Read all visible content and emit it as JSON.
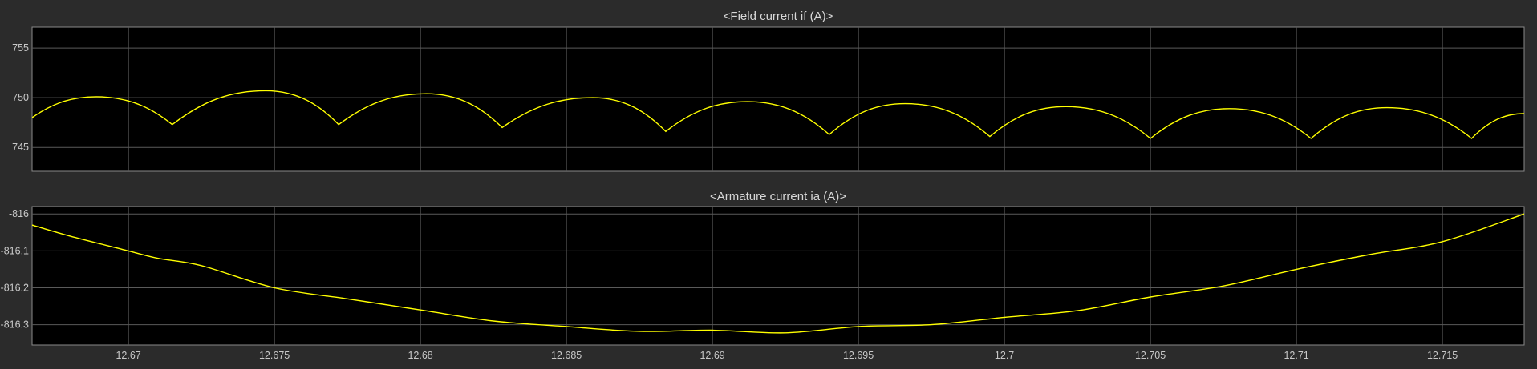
{
  "chart_data": [
    {
      "type": "line",
      "title": "<Field current if (A)>",
      "x_ticks": [
        12.67,
        12.675,
        12.68,
        12.685,
        12.69,
        12.695,
        12.7,
        12.705,
        12.71,
        12.715
      ],
      "x_tick_labels": [],
      "xlim": [
        12.6667,
        12.7178
      ],
      "ylim": [
        742.6,
        757.1
      ],
      "y_ticks": [
        745,
        750,
        755
      ],
      "y_tick_labels": [
        "745",
        "750",
        "755"
      ],
      "grid": true,
      "series": [
        {
          "color": "#ffff00",
          "x": [
            12.6667,
            12.6689,
            12.6715,
            12.6747,
            12.6772,
            12.6802,
            12.6828,
            12.6859,
            12.6884,
            12.6912,
            12.694,
            12.6966,
            12.6995,
            12.7021,
            12.705,
            12.7077,
            12.7105,
            12.7131,
            12.716,
            12.7178
          ],
          "y": [
            748.0,
            750.1,
            747.3,
            750.7,
            747.3,
            750.4,
            747.0,
            750.0,
            746.6,
            749.6,
            746.3,
            749.4,
            746.1,
            749.1,
            745.9,
            748.9,
            745.9,
            749.0,
            745.9,
            748.4
          ]
        }
      ]
    },
    {
      "type": "line",
      "title": "<Armature current ia (A)>",
      "x_ticks": [
        12.67,
        12.675,
        12.68,
        12.685,
        12.69,
        12.695,
        12.7,
        12.705,
        12.71,
        12.715
      ],
      "x_tick_labels": [
        "12.67",
        "12.675",
        "12.68",
        "12.685",
        "12.69",
        "12.695",
        "12.7",
        "12.705",
        "12.71",
        "12.715"
      ],
      "xlim": [
        12.6667,
        12.7178
      ],
      "ylim": [
        -816.355,
        -815.98
      ],
      "y_ticks": [
        -816.3,
        -816.2,
        -816.1,
        -816
      ],
      "y_tick_labels": [
        "-816.3",
        "-816.2",
        "-816.1",
        "-816"
      ],
      "grid": true,
      "series": [
        {
          "color": "#ffff00",
          "x": [
            12.6667,
            12.668,
            12.67,
            12.671,
            12.6725,
            12.675,
            12.6775,
            12.68,
            12.6825,
            12.685,
            12.6875,
            12.69,
            12.6925,
            12.695,
            12.6975,
            12.7,
            12.7025,
            12.705,
            12.7075,
            12.71,
            12.7125,
            12.715,
            12.7178
          ],
          "y": [
            -816.03,
            -816.06,
            -816.1,
            -816.12,
            -816.14,
            -816.2,
            -816.23,
            -816.26,
            -816.29,
            -816.305,
            -816.318,
            -816.315,
            -816.322,
            -816.305,
            -816.3,
            -816.28,
            -816.262,
            -816.225,
            -816.195,
            -816.15,
            -816.11,
            -816.075,
            -816.0
          ]
        }
      ]
    }
  ]
}
